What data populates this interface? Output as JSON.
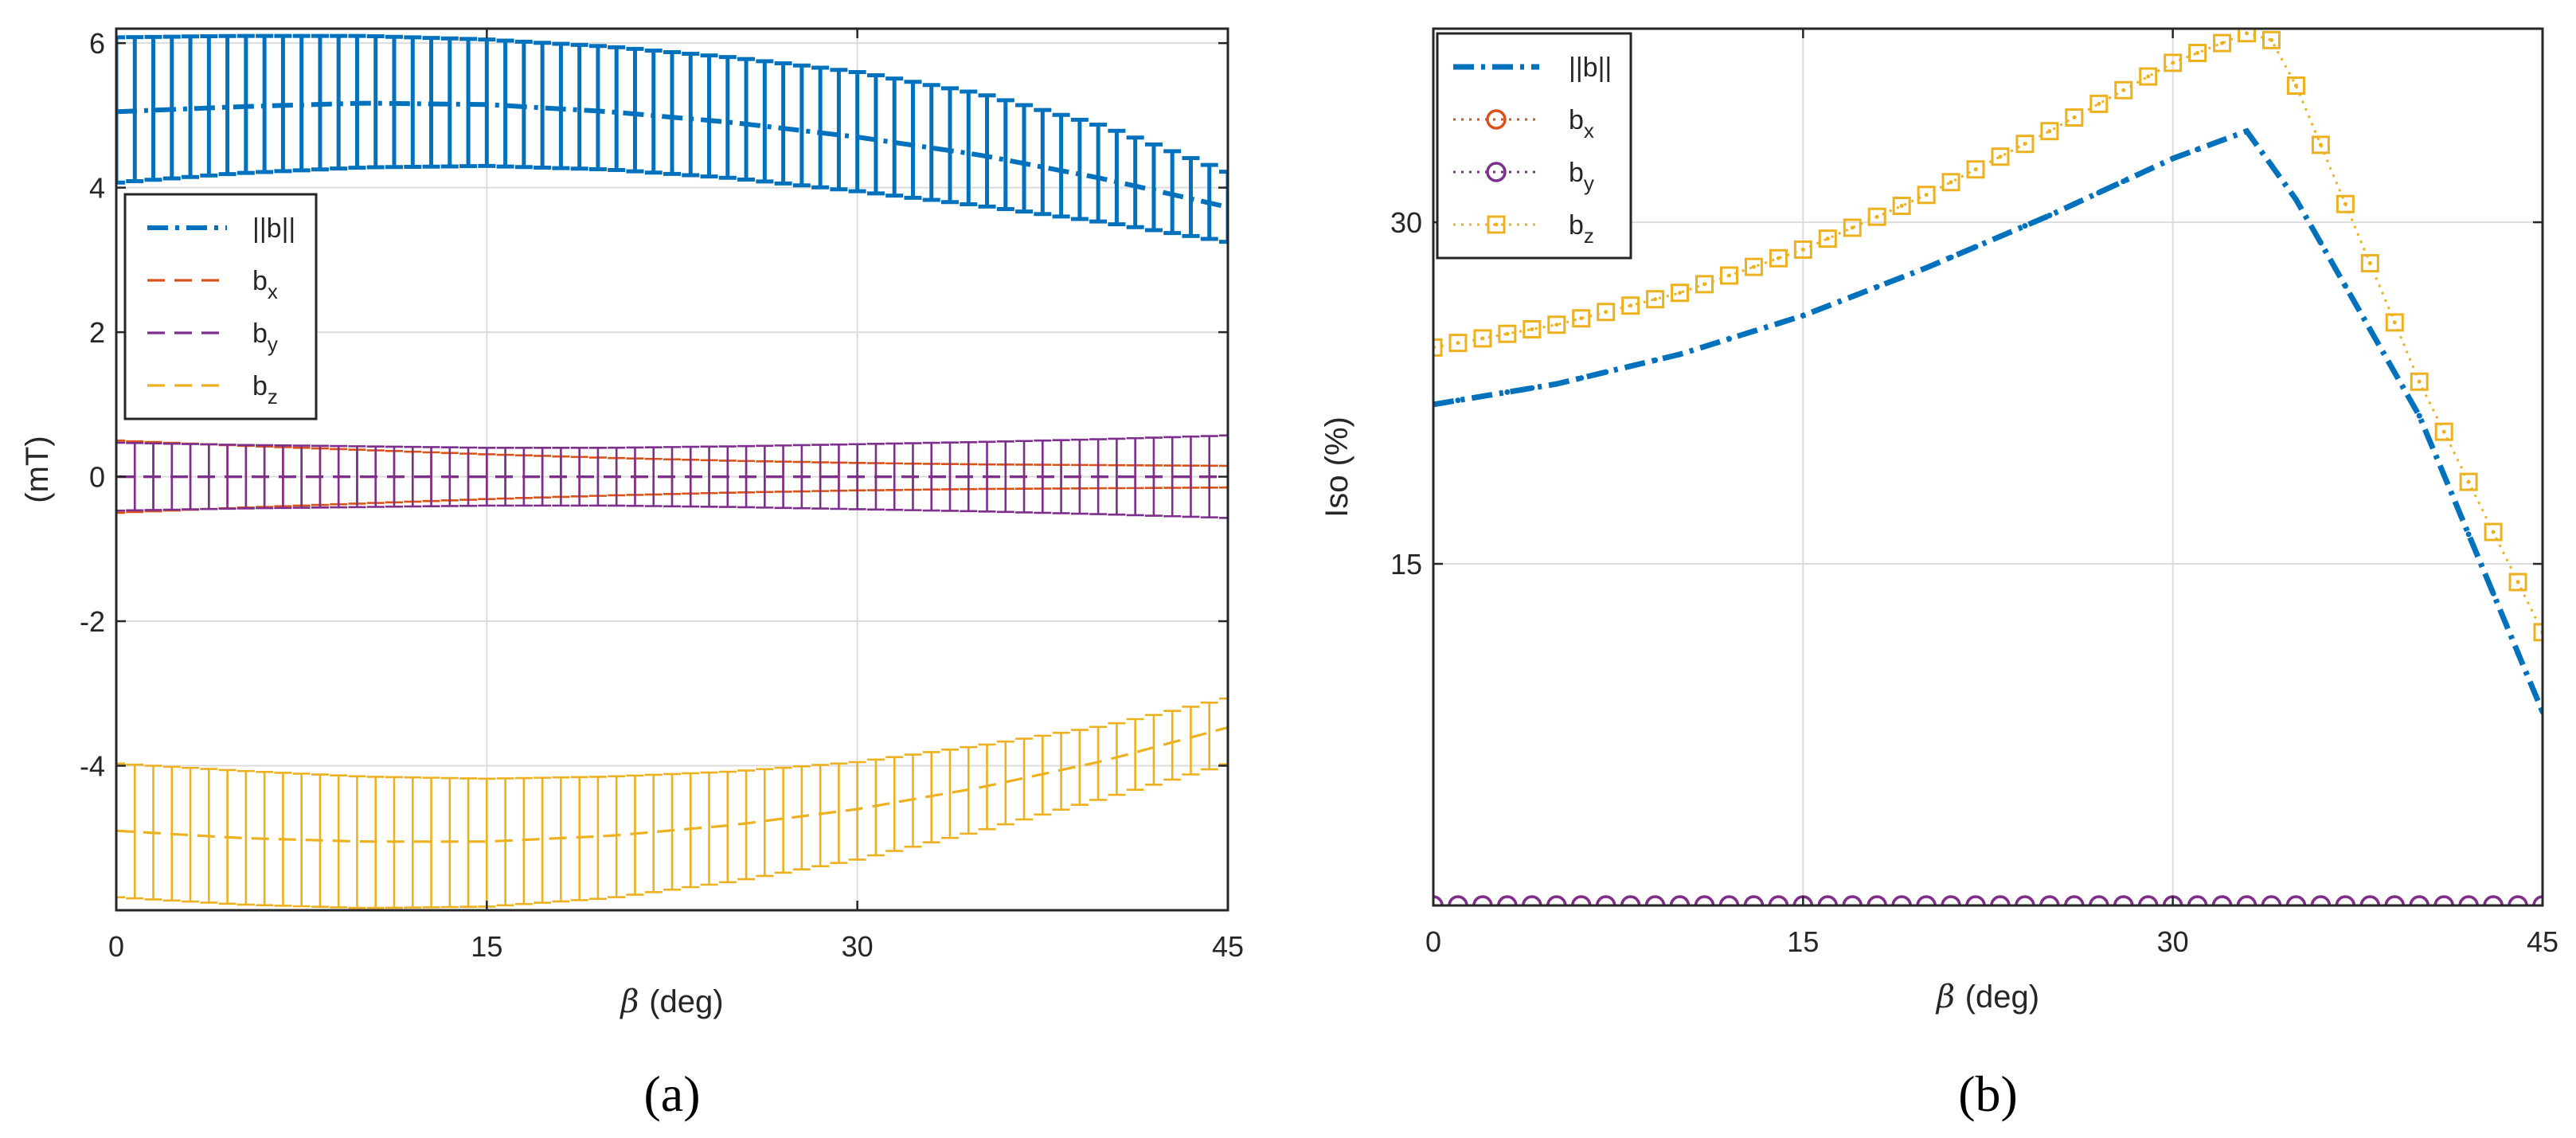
{
  "chart_data": [
    {
      "type": "line",
      "panel_label": "(a)",
      "xlabel": "(deg)",
      "xlabel_symbol": "β",
      "ylabel": "(mT)",
      "xlim": [
        0,
        45
      ],
      "ylim": [
        -6,
        6.2
      ],
      "xticks": [
        0,
        15,
        30,
        45
      ],
      "xtick_labels": [
        "0",
        "15",
        "30",
        "45"
      ],
      "yticks": [
        -4,
        -2,
        0,
        2,
        4,
        6
      ],
      "ytick_labels": [
        "-4",
        "-2",
        "0",
        "2",
        "4",
        "6"
      ],
      "grid": true,
      "legend_position": "middle-left",
      "error_bars": true,
      "series": [
        {
          "name": "||b||",
          "label_main": "||b||",
          "label_sub": "",
          "style": "dashdot",
          "color": "#0072bd",
          "x": [
            0,
            5,
            10,
            15,
            20,
            25,
            30,
            35,
            40,
            45
          ],
          "mean": [
            5.05,
            5.12,
            5.17,
            5.15,
            5.05,
            4.9,
            4.7,
            4.45,
            4.12,
            3.73
          ],
          "upper": [
            6.08,
            6.1,
            6.1,
            6.05,
            5.95,
            5.8,
            5.6,
            5.3,
            4.85,
            4.22
          ],
          "lower": [
            4.07,
            4.2,
            4.28,
            4.3,
            4.25,
            4.13,
            3.95,
            3.75,
            3.52,
            3.25
          ]
        },
        {
          "name": "bx",
          "label_main": "b",
          "label_sub": "x",
          "style": "dashed",
          "color": "#d95319",
          "x": [
            0,
            5,
            10,
            15,
            20,
            25,
            30,
            35,
            40,
            45
          ],
          "mean": [
            0.0,
            0.0,
            0.0,
            0.0,
            0.0,
            0.0,
            0.0,
            0.0,
            0.0,
            0.0
          ],
          "upper": [
            0.5,
            0.43,
            0.37,
            0.31,
            0.26,
            0.22,
            0.19,
            0.17,
            0.16,
            0.15
          ],
          "lower": [
            -0.5,
            -0.43,
            -0.37,
            -0.31,
            -0.26,
            -0.22,
            -0.19,
            -0.17,
            -0.16,
            -0.15
          ]
        },
        {
          "name": "by",
          "label_main": "b",
          "label_sub": "y",
          "style": "dashed",
          "color": "#7e2f8e",
          "x": [
            0,
            5,
            10,
            15,
            20,
            25,
            30,
            35,
            40,
            45
          ],
          "mean": [
            0.0,
            0.0,
            0.0,
            0.0,
            0.0,
            0.0,
            0.0,
            0.0,
            0.0,
            0.0
          ],
          "upper": [
            0.47,
            0.44,
            0.42,
            0.4,
            0.4,
            0.42,
            0.45,
            0.48,
            0.52,
            0.57
          ],
          "lower": [
            -0.47,
            -0.44,
            -0.42,
            -0.4,
            -0.4,
            -0.42,
            -0.45,
            -0.48,
            -0.52,
            -0.57
          ]
        },
        {
          "name": "bz",
          "label_main": "b",
          "label_sub": "z",
          "style": "dashed",
          "color": "#edb120",
          "x": [
            0,
            5,
            10,
            15,
            20,
            25,
            30,
            35,
            40,
            45
          ],
          "mean": [
            -4.9,
            -5.0,
            -5.05,
            -5.05,
            -4.97,
            -4.82,
            -4.6,
            -4.3,
            -3.93,
            -3.47
          ],
          "upper": [
            -3.97,
            -4.07,
            -4.15,
            -4.18,
            -4.15,
            -4.08,
            -3.95,
            -3.72,
            -3.45,
            -3.07
          ],
          "lower": [
            -5.82,
            -5.92,
            -5.97,
            -5.95,
            -5.83,
            -5.6,
            -5.3,
            -4.9,
            -4.45,
            -3.98
          ]
        }
      ]
    },
    {
      "type": "line",
      "panel_label": "(b)",
      "xlabel": "(deg)",
      "xlabel_symbol": "β",
      "ylabel": "Iso (%)",
      "xlim": [
        0,
        45
      ],
      "ylim": [
        0,
        38.5
      ],
      "xticks": [
        0,
        15,
        30,
        45
      ],
      "xtick_labels": [
        "0",
        "15",
        "30",
        "45"
      ],
      "yticks": [
        15,
        30
      ],
      "ytick_labels": [
        "15",
        "30"
      ],
      "grid": true,
      "legend_position": "top-left",
      "series": [
        {
          "name": "||b||",
          "label_main": "||b||",
          "label_sub": "",
          "style": "dashdot",
          "color": "#0072bd",
          "marker": "dot",
          "x": [
            0,
            5,
            10,
            15,
            20,
            25,
            30,
            33,
            35,
            40,
            45
          ],
          "y": [
            22.0,
            22.9,
            24.2,
            25.9,
            28.0,
            30.3,
            32.8,
            34.0,
            31.0,
            21.5,
            8.5
          ]
        },
        {
          "name": "bx",
          "label_main": "b",
          "label_sub": "x",
          "style": "dotted",
          "color": "#d95319",
          "marker": "circle",
          "x": [
            0,
            5,
            10,
            15,
            20,
            25,
            30,
            35,
            40,
            45
          ],
          "y": [
            0,
            0,
            0,
            0,
            0,
            0,
            0,
            0,
            0,
            0
          ]
        },
        {
          "name": "by",
          "label_main": "b",
          "label_sub": "y",
          "style": "dotted",
          "color": "#7e2f8e",
          "marker": "circle",
          "x": [
            0,
            5,
            10,
            15,
            20,
            25,
            30,
            35,
            40,
            45
          ],
          "y": [
            0,
            0,
            0,
            0,
            0,
            0,
            0,
            0,
            0,
            0
          ]
        },
        {
          "name": "bz",
          "label_main": "b",
          "label_sub": "z",
          "style": "dotted",
          "color": "#edb120",
          "marker": "square",
          "x": [
            0,
            5,
            10,
            15,
            20,
            25,
            30,
            33,
            34,
            35,
            40,
            45
          ],
          "y": [
            24.5,
            25.5,
            26.9,
            28.8,
            31.2,
            34.0,
            37.0,
            38.3,
            38.0,
            36.0,
            23.0,
            12.0
          ]
        }
      ]
    }
  ]
}
